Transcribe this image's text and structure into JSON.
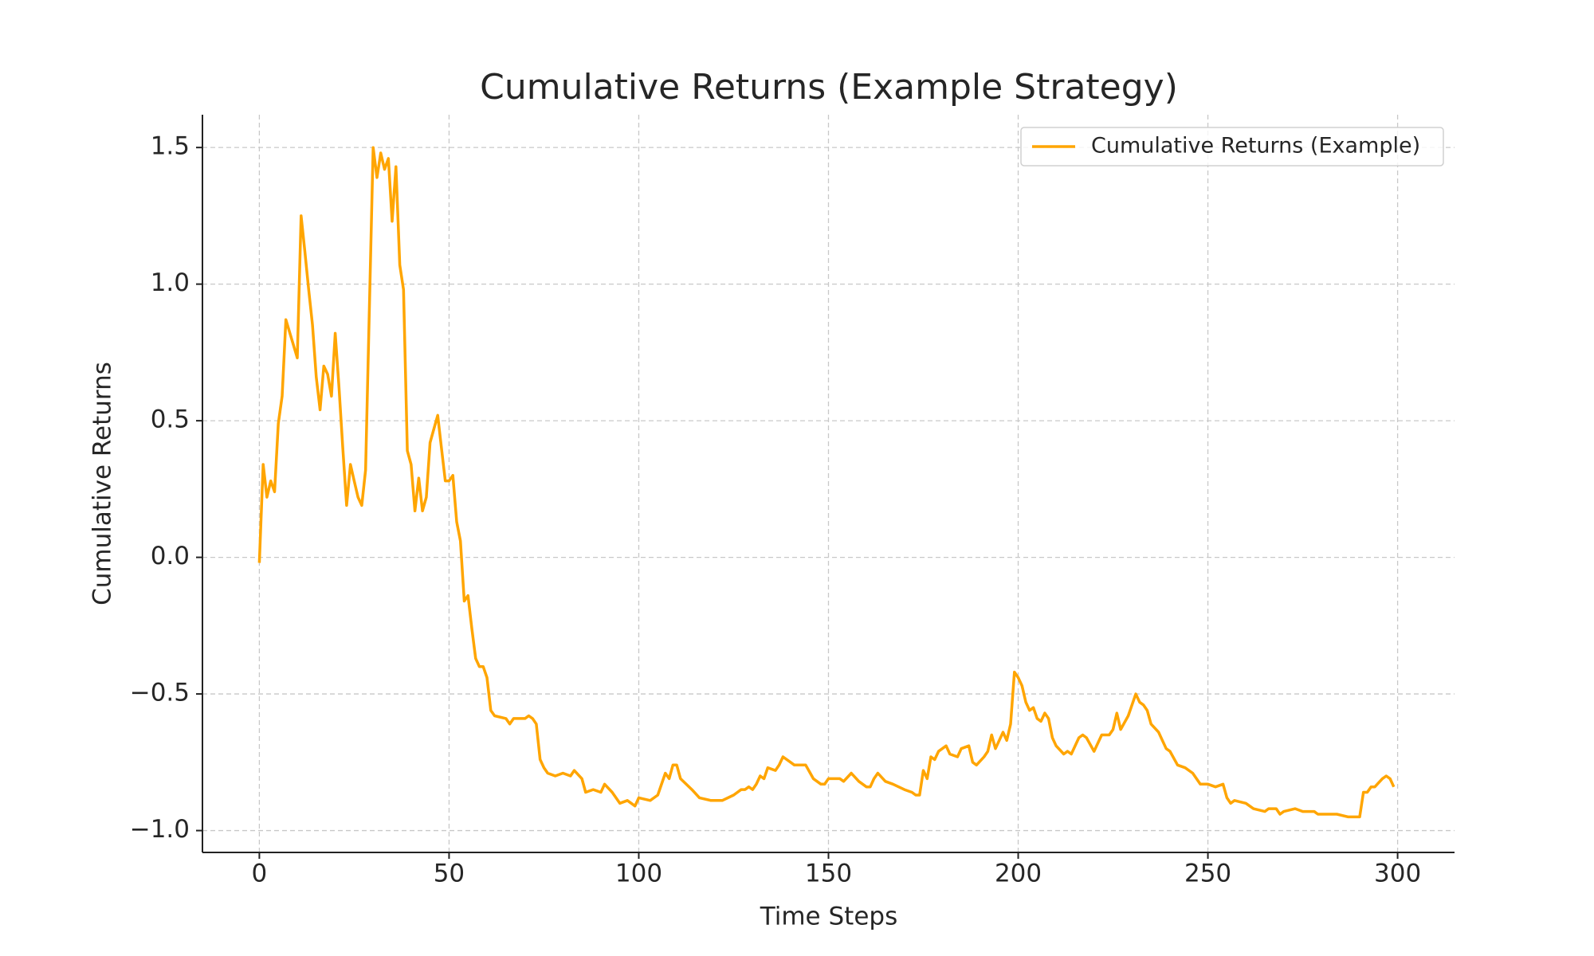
{
  "chart_data": {
    "type": "line",
    "title": "Cumulative Returns (Example Strategy)",
    "xlabel": "Time Steps",
    "ylabel": "Cumulative Returns",
    "x": [
      0,
      1,
      2,
      3,
      4,
      5,
      6,
      7,
      10,
      11,
      12,
      13,
      14,
      15,
      16,
      17,
      18,
      19,
      20,
      21,
      22,
      23,
      24,
      25,
      26,
      27,
      28,
      30,
      31,
      32,
      33,
      34,
      35,
      36,
      37,
      38,
      39,
      40,
      41,
      42,
      43,
      44,
      45,
      46,
      47,
      48,
      49,
      50,
      51,
      52,
      53,
      54,
      55,
      56,
      57,
      58,
      59,
      60,
      61,
      62,
      65,
      66,
      67,
      70,
      71,
      72,
      73,
      74,
      75,
      76,
      78,
      80,
      82,
      83,
      85,
      86,
      88,
      90,
      91,
      93,
      95,
      97,
      99,
      100,
      103,
      105,
      107,
      108,
      109,
      110,
      111,
      114,
      116,
      119,
      122,
      125,
      127,
      128,
      129,
      130,
      131,
      132,
      133,
      134,
      136,
      137,
      138,
      140,
      141,
      144,
      146,
      148,
      149,
      150,
      153,
      154,
      156,
      158,
      160,
      161,
      162,
      163,
      165,
      167,
      170,
      172,
      173,
      174,
      175,
      176,
      177,
      178,
      179,
      181,
      182,
      184,
      185,
      187,
      188,
      189,
      191,
      192,
      193,
      194,
      196,
      197,
      198,
      199,
      200,
      201,
      202,
      203,
      204,
      205,
      206,
      207,
      208,
      209,
      210,
      212,
      213,
      214,
      216,
      217,
      218,
      220,
      222,
      224,
      225,
      226,
      227,
      229,
      231,
      232,
      233,
      234,
      235,
      237,
      239,
      240,
      242,
      244,
      246,
      248,
      250,
      252,
      254,
      255,
      256,
      257,
      260,
      262,
      265,
      266,
      268,
      269,
      270,
      273,
      275,
      278,
      279,
      281,
      284,
      287,
      290,
      291,
      292,
      293,
      294,
      296,
      297,
      298,
      299
    ],
    "series": [
      {
        "name": "Cumulative Returns (Example)",
        "color": "#ffa500",
        "values": [
          -0.02,
          0.34,
          0.22,
          0.28,
          0.24,
          0.49,
          0.59,
          0.87,
          0.73,
          1.25,
          1.12,
          0.98,
          0.85,
          0.66,
          0.54,
          0.7,
          0.67,
          0.59,
          0.82,
          0.62,
          0.4,
          0.19,
          0.34,
          0.28,
          0.22,
          0.19,
          0.32,
          1.5,
          1.39,
          1.48,
          1.42,
          1.46,
          1.23,
          1.43,
          1.07,
          0.98,
          0.39,
          0.34,
          0.17,
          0.29,
          0.17,
          0.22,
          0.42,
          0.47,
          0.52,
          0.4,
          0.28,
          0.28,
          0.3,
          0.13,
          0.06,
          -0.16,
          -0.14,
          -0.26,
          -0.37,
          -0.4,
          -0.4,
          -0.44,
          -0.56,
          -0.58,
          -0.59,
          -0.61,
          -0.59,
          -0.59,
          -0.58,
          -0.59,
          -0.61,
          -0.74,
          -0.77,
          -0.79,
          -0.8,
          -0.79,
          -0.8,
          -0.78,
          -0.81,
          -0.86,
          -0.85,
          -0.86,
          -0.83,
          -0.86,
          -0.9,
          -0.89,
          -0.91,
          -0.88,
          -0.89,
          -0.87,
          -0.79,
          -0.81,
          -0.76,
          -0.76,
          -0.81,
          -0.85,
          -0.88,
          -0.89,
          -0.89,
          -0.87,
          -0.85,
          -0.85,
          -0.84,
          -0.85,
          -0.83,
          -0.8,
          -0.81,
          -0.77,
          -0.78,
          -0.76,
          -0.73,
          -0.75,
          -0.76,
          -0.76,
          -0.81,
          -0.83,
          -0.83,
          -0.81,
          -0.81,
          -0.82,
          -0.79,
          -0.82,
          -0.84,
          -0.84,
          -0.81,
          -0.79,
          -0.82,
          -0.83,
          -0.85,
          -0.86,
          -0.87,
          -0.87,
          -0.78,
          -0.81,
          -0.73,
          -0.74,
          -0.71,
          -0.69,
          -0.72,
          -0.73,
          -0.7,
          -0.69,
          -0.75,
          -0.76,
          -0.73,
          -0.71,
          -0.65,
          -0.7,
          -0.64,
          -0.67,
          -0.61,
          -0.42,
          -0.44,
          -0.47,
          -0.53,
          -0.56,
          -0.55,
          -0.59,
          -0.6,
          -0.57,
          -0.59,
          -0.66,
          -0.69,
          -0.72,
          -0.71,
          -0.72,
          -0.66,
          -0.65,
          -0.66,
          -0.71,
          -0.65,
          -0.65,
          -0.63,
          -0.57,
          -0.63,
          -0.58,
          -0.5,
          -0.53,
          -0.54,
          -0.56,
          -0.61,
          -0.64,
          -0.7,
          -0.71,
          -0.76,
          -0.77,
          -0.79,
          -0.83,
          -0.83,
          -0.84,
          -0.83,
          -0.88,
          -0.9,
          -0.89,
          -0.9,
          -0.92,
          -0.93,
          -0.92,
          -0.92,
          -0.94,
          -0.93,
          -0.92,
          -0.93,
          -0.93,
          -0.94,
          -0.94,
          -0.94,
          -0.95,
          -0.95,
          -0.86,
          -0.86,
          -0.84,
          -0.84,
          -0.81,
          -0.8,
          -0.81,
          -0.84
        ]
      }
    ],
    "xlim": [
      -15,
      315
    ],
    "ylim": [
      -1.08,
      1.62
    ],
    "xticks": [
      0,
      50,
      100,
      150,
      200,
      250,
      300
    ],
    "yticks": [
      {
        "value": -1,
        "label": "−1.0"
      },
      {
        "value": -0.5,
        "label": "−0.5"
      },
      {
        "value": 0,
        "label": "0.0"
      },
      0.5,
      {
        "value": 1,
        "label": "1.0"
      },
      1.5
    ],
    "grid": true,
    "legend": "upper right"
  }
}
